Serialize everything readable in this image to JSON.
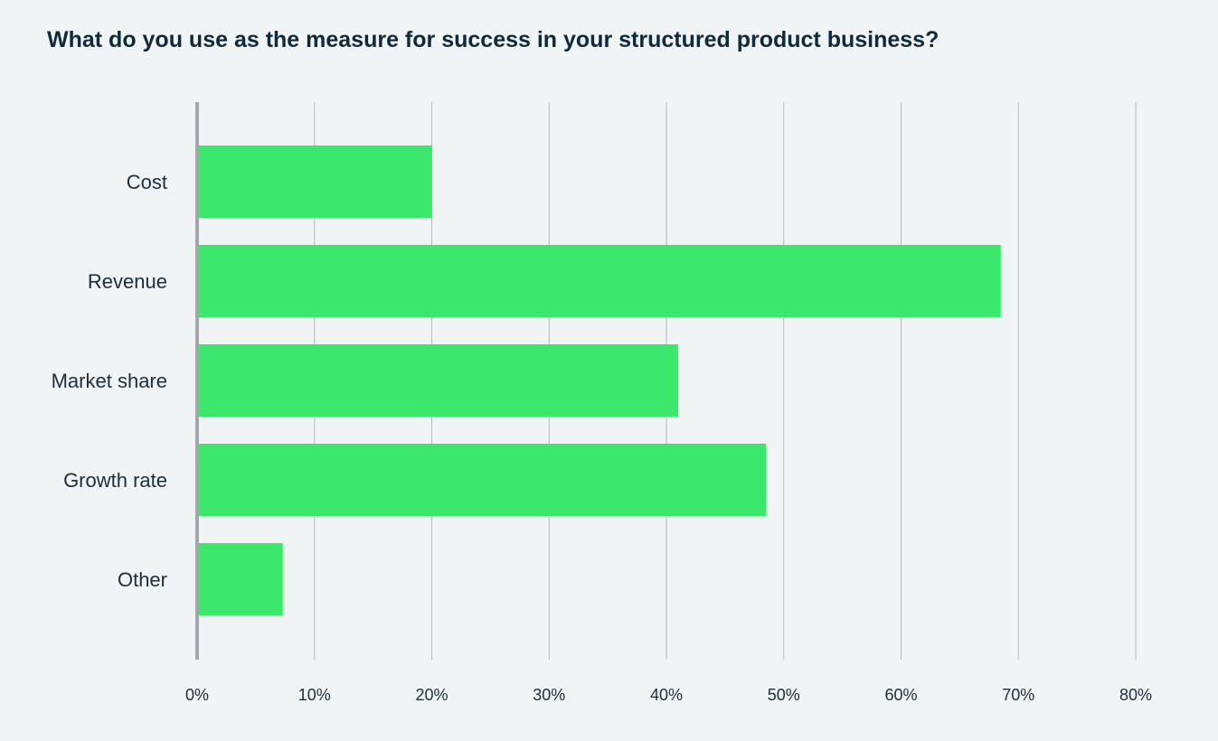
{
  "chart_data": {
    "type": "bar",
    "orientation": "horizontal",
    "title": "What do you use as the measure for success in your structured product business?",
    "categories": [
      "Cost",
      "Revenue",
      "Market share",
      "Growth rate",
      "Other"
    ],
    "values": [
      20,
      68.5,
      41,
      48.5,
      7.3
    ],
    "unit": "%",
    "xlim": [
      0,
      80
    ],
    "ticks": [
      "0%",
      "10%",
      "20%",
      "30%",
      "40%",
      "50%",
      "60%",
      "70%",
      "80%"
    ],
    "grid": true,
    "colors": {
      "bar": "#3be86b",
      "grid": "#b4b9bb",
      "axis": "#a2a7a9",
      "text": "#1a2e3b",
      "background": "#f1f4f4"
    }
  }
}
